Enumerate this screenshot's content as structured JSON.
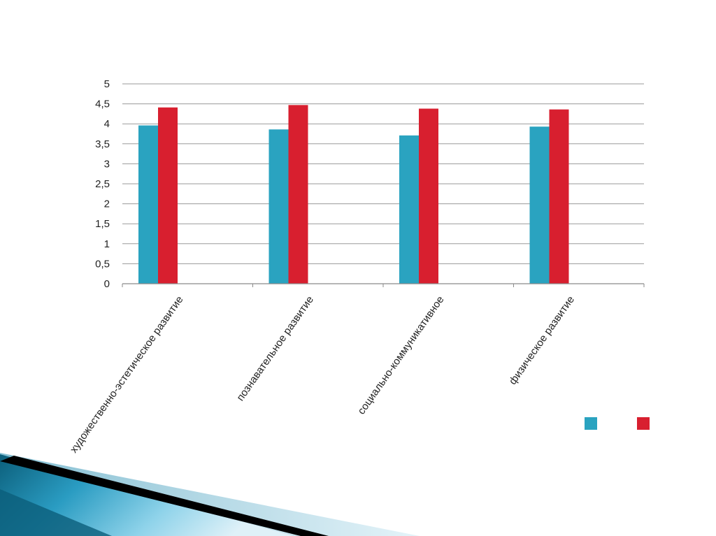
{
  "slide": {
    "background": "#ffffff"
  },
  "chart_data": {
    "type": "bar",
    "title": "",
    "xlabel": "",
    "ylabel": "",
    "categories": [
      "художественно-эстетическое развитие",
      "познавательное развитие",
      "социально-коммуникативное",
      "физическое развитие"
    ],
    "y_ticks": [
      "0",
      "0,5",
      "1",
      "1,5",
      "2",
      "2,5",
      "3",
      "3,5",
      "4",
      "4,5",
      "5"
    ],
    "ylim": [
      0,
      5
    ],
    "grid": true,
    "legend_position": "bottom-right",
    "series": [
      {
        "values": [
          3.96,
          3.86,
          3.71,
          3.93
        ],
        "color": "#2aa3c0"
      },
      {
        "values": [
          4.41,
          4.47,
          4.38,
          4.36
        ],
        "color": "#d81f2f"
      }
    ]
  },
  "decoration": {
    "corner_colors": [
      "#0b5e7a",
      "#2a9cc2",
      "#7fcde6",
      "#000000"
    ]
  }
}
